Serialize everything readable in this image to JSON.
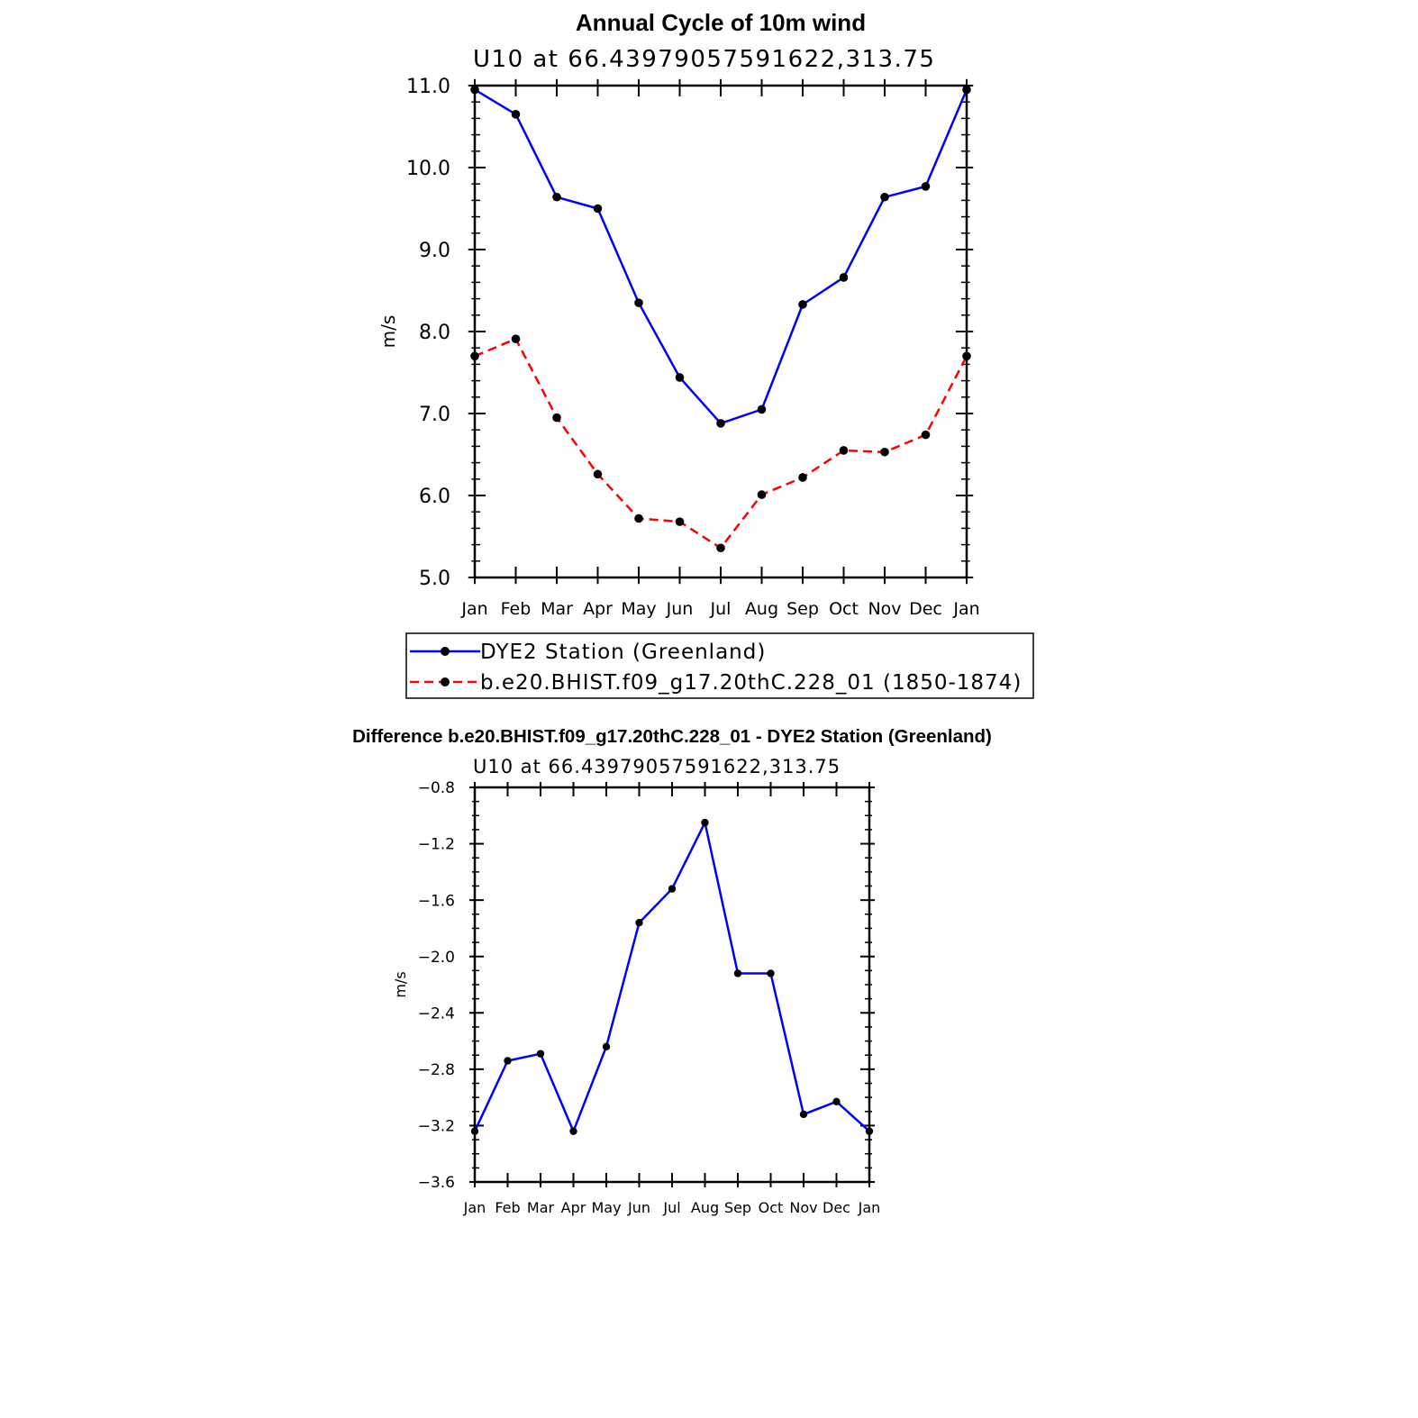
{
  "chart_data": [
    {
      "type": "line",
      "title": "Annual Cycle of 10m wind",
      "subtitle": "U10 at 66.43979057591622,313.75",
      "ylabel": "m/s",
      "xlabel": "",
      "categories": [
        "Jan",
        "Feb",
        "Mar",
        "Apr",
        "May",
        "Jun",
        "Jul",
        "Aug",
        "Sep",
        "Oct",
        "Nov",
        "Dec",
        "Jan"
      ],
      "ylim": [
        5.0,
        11.0
      ],
      "yticks": [
        "5.0",
        "6.0",
        "7.0",
        "8.0",
        "9.0",
        "10.0",
        "11.0"
      ],
      "legend_placement": "below",
      "series": [
        {
          "name": "DYE2 Station (Greenland)",
          "color": "#0000ff",
          "dash": "solid",
          "values": [
            10.95,
            10.65,
            9.64,
            9.5,
            8.35,
            7.44,
            6.88,
            7.05,
            8.33,
            8.66,
            9.64,
            9.77,
            10.95
          ]
        },
        {
          "name": "b.e20.BHIST.f09_g17.20thC.228_01 (1850-1874)",
          "color": "#ff0000",
          "dash": "dashed",
          "values": [
            7.7,
            7.91,
            6.95,
            6.26,
            5.72,
            5.68,
            5.36,
            6.01,
            6.22,
            6.55,
            6.53,
            6.74,
            7.7
          ]
        }
      ]
    },
    {
      "type": "line",
      "title": "Difference b.e20.BHIST.f09_g17.20thC.228_01 - DYE2 Station (Greenland)",
      "subtitle": "U10 at 66.43979057591622,313.75",
      "ylabel": "m/s",
      "xlabel": "",
      "categories": [
        "Jan",
        "Feb",
        "Mar",
        "Apr",
        "May",
        "Jun",
        "Jul",
        "Aug",
        "Sep",
        "Oct",
        "Nov",
        "Dec",
        "Jan"
      ],
      "ylim": [
        -3.6,
        -0.8
      ],
      "yticks": [
        "-3.6",
        "-3.2",
        "-2.8",
        "-2.4",
        "-2.0",
        "-1.6",
        "-1.2",
        "-0.8"
      ],
      "series": [
        {
          "color": "#0000ff",
          "dash": "solid",
          "values": [
            -3.24,
            -2.74,
            -2.69,
            -3.24,
            -2.64,
            -1.76,
            -1.52,
            -1.05,
            -2.12,
            -2.12,
            -3.12,
            -3.03,
            -3.24
          ]
        }
      ]
    }
  ]
}
